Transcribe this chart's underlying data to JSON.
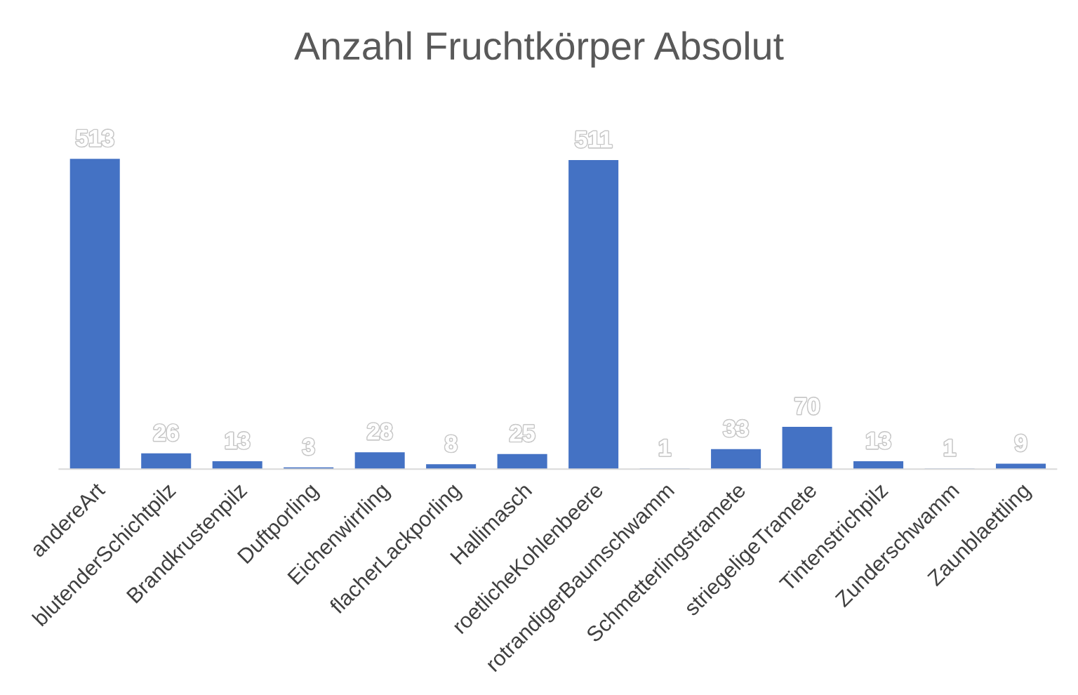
{
  "chart_data": {
    "type": "bar",
    "title": "Anzahl Fruchtkörper Absolut",
    "categories": [
      "andereArt",
      "blutenderSchichtpilz",
      "Brandkrustenpilz",
      "Duftporling",
      "Eichenwirrling",
      "flacherLackporling",
      "Hallimasch",
      "roetlicheKohlenbeere",
      "rotrandigerBaumschwamm",
      "Schmetterlingstramete",
      "striegeligeTramete",
      "Tintenstrichpilz",
      "Zunderschwamm",
      "Zaunblaettling"
    ],
    "values": [
      513,
      26,
      13,
      3,
      28,
      8,
      25,
      511,
      1,
      33,
      70,
      13,
      1,
      9
    ],
    "color": "#4472c4",
    "data_labels": true,
    "grid": false
  }
}
